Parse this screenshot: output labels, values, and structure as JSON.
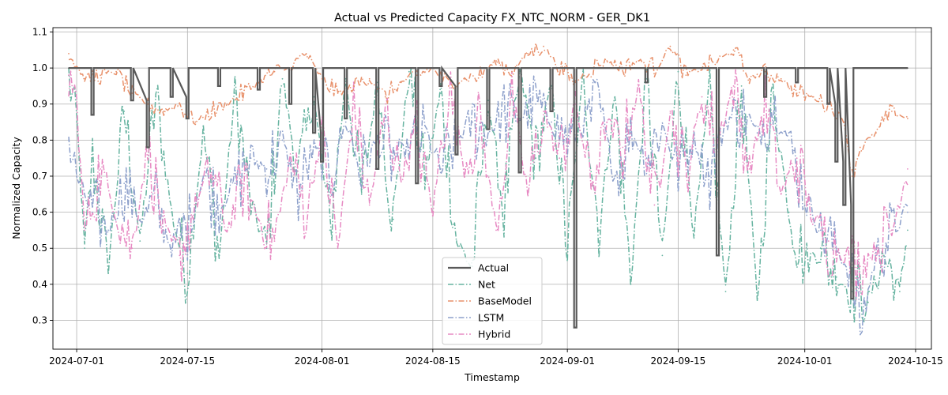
{
  "chart_data": {
    "type": "line",
    "title": "Actual vs Predicted Capacity FX_NTC_NORM - GER_DK1",
    "xlabel": "Timestamp",
    "ylabel": "Normalized Capacity",
    "x_range": [
      "2024-06-28",
      "2024-10-17"
    ],
    "ylim": [
      0.22,
      1.112
    ],
    "x_ticks": [
      "2024-07-01",
      "2024-07-15",
      "2024-08-01",
      "2024-08-15",
      "2024-09-01",
      "2024-09-15",
      "2024-10-01",
      "2024-10-15"
    ],
    "y_ticks": [
      0.3,
      0.4,
      0.5,
      0.6,
      0.7,
      0.8,
      0.9,
      1.0,
      1.1
    ],
    "grid": true,
    "legend_position": "lower-center",
    "series": [
      {
        "name": "Actual",
        "color": "#595959",
        "style": "solid",
        "x": [
          "2024-06-30",
          "2024-07-02",
          "2024-07-03",
          "2024-07-04",
          "2024-07-06",
          "2024-07-08",
          "2024-07-10",
          "2024-07-11",
          "2024-07-13",
          "2024-07-15",
          "2024-07-17",
          "2024-07-19",
          "2024-07-21",
          "2024-07-24",
          "2024-07-26",
          "2024-07-28",
          "2024-07-29",
          "2024-07-31",
          "2024-08-01",
          "2024-08-02",
          "2024-08-04",
          "2024-08-06",
          "2024-08-08",
          "2024-08-10",
          "2024-08-13",
          "2024-08-14",
          "2024-08-16",
          "2024-08-18",
          "2024-08-20",
          "2024-08-22",
          "2024-08-24",
          "2024-08-26",
          "2024-08-28",
          "2024-08-30",
          "2024-09-01",
          "2024-09-02",
          "2024-09-03",
          "2024-09-05",
          "2024-09-08",
          "2024-09-11",
          "2024-09-14",
          "2024-09-17",
          "2024-09-20",
          "2024-09-21",
          "2024-09-23",
          "2024-09-26",
          "2024-09-28",
          "2024-09-30",
          "2024-10-02",
          "2024-10-04",
          "2024-10-05",
          "2024-10-06",
          "2024-10-07",
          "2024-10-09",
          "2024-10-12",
          "2024-10-14"
        ],
        "y": [
          1.0,
          1.0,
          0.87,
          1.0,
          1.0,
          0.91,
          0.78,
          1.0,
          0.92,
          0.86,
          1.0,
          0.95,
          1.0,
          0.94,
          1.0,
          0.9,
          1.0,
          0.82,
          0.74,
          1.0,
          0.86,
          1.0,
          0.72,
          1.0,
          0.68,
          1.0,
          0.95,
          0.76,
          1.0,
          0.83,
          1.0,
          0.71,
          1.0,
          0.88,
          1.0,
          0.28,
          1.0,
          1.0,
          1.0,
          0.96,
          1.0,
          1.0,
          0.48,
          1.0,
          1.0,
          0.92,
          1.0,
          0.96,
          1.0,
          0.9,
          0.74,
          0.62,
          0.36,
          1.0,
          1.0,
          1.0
        ]
      },
      {
        "name": "Net",
        "color": "#66b3a0",
        "style": "dashdot",
        "x": [
          "2024-06-30",
          "2024-07-01",
          "2024-07-02",
          "2024-07-03",
          "2024-07-05",
          "2024-07-07",
          "2024-07-09",
          "2024-07-11",
          "2024-07-13",
          "2024-07-15",
          "2024-07-17",
          "2024-07-19",
          "2024-07-21",
          "2024-07-23",
          "2024-07-25",
          "2024-07-27",
          "2024-07-29",
          "2024-07-31",
          "2024-08-02",
          "2024-08-04",
          "2024-08-06",
          "2024-08-08",
          "2024-08-10",
          "2024-08-12",
          "2024-08-14",
          "2024-08-16",
          "2024-08-18",
          "2024-08-20",
          "2024-08-22",
          "2024-08-24",
          "2024-08-26",
          "2024-08-28",
          "2024-08-30",
          "2024-09-01",
          "2024-09-03",
          "2024-09-05",
          "2024-09-07",
          "2024-09-09",
          "2024-09-11",
          "2024-09-13",
          "2024-09-15",
          "2024-09-17",
          "2024-09-19",
          "2024-09-21",
          "2024-09-23",
          "2024-09-25",
          "2024-09-27",
          "2024-09-29",
          "2024-10-01",
          "2024-10-03",
          "2024-10-05",
          "2024-10-07",
          "2024-10-09",
          "2024-10-11",
          "2024-10-13",
          "2024-10-14"
        ],
        "y": [
          0.98,
          0.85,
          0.5,
          0.75,
          0.45,
          0.88,
          0.52,
          0.92,
          0.6,
          0.43,
          0.82,
          0.48,
          0.93,
          0.62,
          0.5,
          0.97,
          0.7,
          0.92,
          0.55,
          0.97,
          0.65,
          0.96,
          0.58,
          0.99,
          0.7,
          0.93,
          0.52,
          0.45,
          0.91,
          0.6,
          0.99,
          0.75,
          0.95,
          0.5,
          0.98,
          0.55,
          0.92,
          0.42,
          0.97,
          0.48,
          0.99,
          0.55,
          0.9,
          0.38,
          0.95,
          0.36,
          0.93,
          0.6,
          0.46,
          0.5,
          0.42,
          0.38,
          0.35,
          0.48,
          0.38,
          0.55
        ]
      },
      {
        "name": "BaseModel",
        "color": "#e8916b",
        "style": "dashdot",
        "x": [
          "2024-06-30",
          "2024-07-02",
          "2024-07-04",
          "2024-07-06",
          "2024-07-08",
          "2024-07-10",
          "2024-07-12",
          "2024-07-14",
          "2024-07-16",
          "2024-07-18",
          "2024-07-20",
          "2024-07-22",
          "2024-07-24",
          "2024-07-26",
          "2024-07-28",
          "2024-07-30",
          "2024-08-01",
          "2024-08-03",
          "2024-08-05",
          "2024-08-07",
          "2024-08-09",
          "2024-08-11",
          "2024-08-13",
          "2024-08-15",
          "2024-08-17",
          "2024-08-19",
          "2024-08-21",
          "2024-08-23",
          "2024-08-25",
          "2024-08-27",
          "2024-08-29",
          "2024-08-31",
          "2024-09-02",
          "2024-09-04",
          "2024-09-06",
          "2024-09-08",
          "2024-09-10",
          "2024-09-12",
          "2024-09-14",
          "2024-09-16",
          "2024-09-18",
          "2024-09-20",
          "2024-09-22",
          "2024-09-24",
          "2024-09-26",
          "2024-09-28",
          "2024-09-30",
          "2024-10-02",
          "2024-10-04",
          "2024-10-06",
          "2024-10-07",
          "2024-10-08",
          "2024-10-10",
          "2024-10-12",
          "2024-10-14"
        ],
        "y": [
          1.04,
          0.97,
          0.98,
          0.99,
          0.93,
          0.9,
          0.88,
          0.9,
          0.85,
          0.88,
          0.9,
          0.93,
          0.96,
          0.99,
          1.0,
          1.04,
          0.97,
          0.93,
          0.95,
          0.97,
          0.92,
          0.96,
          0.98,
          1.0,
          0.95,
          0.97,
          0.98,
          1.02,
          0.99,
          1.04,
          1.06,
          1.0,
          0.96,
          1.0,
          1.02,
          1.0,
          1.02,
          1.0,
          1.06,
          0.98,
          1.0,
          1.02,
          1.05,
          0.97,
          0.99,
          0.97,
          0.93,
          0.92,
          0.9,
          0.85,
          0.7,
          0.78,
          0.82,
          0.88,
          0.86
        ]
      },
      {
        "name": "LSTM",
        "color": "#8da0cb",
        "style": "dashdot",
        "x": [
          "2024-06-30",
          "2024-07-01",
          "2024-07-03",
          "2024-07-05",
          "2024-07-07",
          "2024-07-09",
          "2024-07-11",
          "2024-07-13",
          "2024-07-15",
          "2024-07-17",
          "2024-07-19",
          "2024-07-21",
          "2024-07-23",
          "2024-07-25",
          "2024-07-27",
          "2024-07-29",
          "2024-07-31",
          "2024-08-02",
          "2024-08-04",
          "2024-08-06",
          "2024-08-08",
          "2024-08-10",
          "2024-08-12",
          "2024-08-14",
          "2024-08-16",
          "2024-08-18",
          "2024-08-20",
          "2024-08-22",
          "2024-08-24",
          "2024-08-26",
          "2024-08-28",
          "2024-08-30",
          "2024-09-01",
          "2024-09-03",
          "2024-09-05",
          "2024-09-07",
          "2024-09-09",
          "2024-09-11",
          "2024-09-13",
          "2024-09-15",
          "2024-09-17",
          "2024-09-19",
          "2024-09-21",
          "2024-09-23",
          "2024-09-25",
          "2024-09-27",
          "2024-09-29",
          "2024-10-01",
          "2024-10-03",
          "2024-10-05",
          "2024-10-07",
          "2024-10-08",
          "2024-10-10",
          "2024-10-12",
          "2024-10-14"
        ],
        "y": [
          0.8,
          0.7,
          0.6,
          0.55,
          0.68,
          0.58,
          0.62,
          0.5,
          0.56,
          0.7,
          0.62,
          0.68,
          0.75,
          0.72,
          0.8,
          0.65,
          0.78,
          0.7,
          0.85,
          0.72,
          0.8,
          0.75,
          0.78,
          0.82,
          0.72,
          0.8,
          0.85,
          0.82,
          0.88,
          0.86,
          0.9,
          0.85,
          0.8,
          0.84,
          0.9,
          0.7,
          0.82,
          0.75,
          0.84,
          0.72,
          0.8,
          0.7,
          0.85,
          0.88,
          0.82,
          0.9,
          0.8,
          0.65,
          0.55,
          0.5,
          0.42,
          0.28,
          0.48,
          0.55,
          0.6
        ]
      },
      {
        "name": "Hybrid",
        "color": "#e78ac3",
        "style": "dashdot",
        "x": [
          "2024-06-30",
          "2024-07-01",
          "2024-07-02",
          "2024-07-04",
          "2024-07-06",
          "2024-07-08",
          "2024-07-10",
          "2024-07-12",
          "2024-07-14",
          "2024-07-16",
          "2024-07-18",
          "2024-07-20",
          "2024-07-22",
          "2024-07-24",
          "2024-07-26",
          "2024-07-28",
          "2024-07-30",
          "2024-08-01",
          "2024-08-03",
          "2024-08-05",
          "2024-08-07",
          "2024-08-09",
          "2024-08-11",
          "2024-08-13",
          "2024-08-15",
          "2024-08-17",
          "2024-08-19",
          "2024-08-21",
          "2024-08-23",
          "2024-08-25",
          "2024-08-27",
          "2024-08-29",
          "2024-08-31",
          "2024-09-02",
          "2024-09-04",
          "2024-09-06",
          "2024-09-08",
          "2024-09-10",
          "2024-09-12",
          "2024-09-14",
          "2024-09-16",
          "2024-09-18",
          "2024-09-20",
          "2024-09-22",
          "2024-09-24",
          "2024-09-26",
          "2024-09-28",
          "2024-09-30",
          "2024-10-02",
          "2024-10-04",
          "2024-10-06",
          "2024-10-08",
          "2024-10-10",
          "2024-10-12",
          "2024-10-14"
        ],
        "y": [
          0.98,
          0.9,
          0.55,
          0.72,
          0.6,
          0.5,
          0.78,
          0.55,
          0.48,
          0.62,
          0.72,
          0.55,
          0.68,
          0.58,
          0.52,
          0.75,
          0.6,
          0.82,
          0.5,
          0.9,
          0.62,
          0.88,
          0.7,
          0.82,
          0.6,
          0.95,
          0.72,
          0.85,
          0.55,
          0.92,
          0.65,
          0.88,
          0.75,
          0.9,
          0.68,
          0.85,
          0.78,
          0.95,
          0.62,
          0.88,
          0.7,
          0.92,
          0.8,
          0.95,
          0.72,
          0.9,
          0.65,
          0.75,
          0.58,
          0.52,
          0.48,
          0.45,
          0.5,
          0.55,
          0.72
        ]
      }
    ]
  }
}
